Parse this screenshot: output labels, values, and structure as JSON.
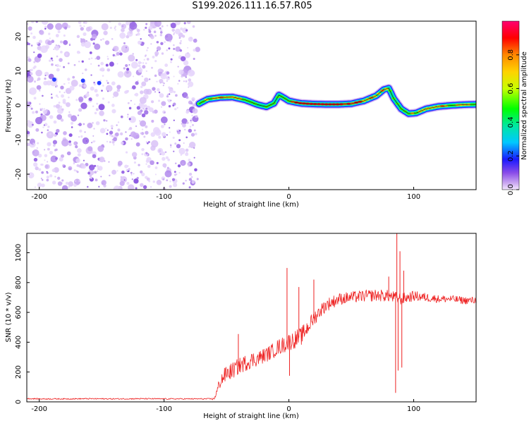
{
  "title": "S199.2026.111.16.57.R05",
  "chart_data": [
    {
      "type": "heatmap",
      "xlabel": "Height of straight line (km)",
      "ylabel": "Frequency (Hz)",
      "xlim": [
        -210,
        150
      ],
      "ylim": [
        -24.5,
        24.5
      ],
      "xticks": [
        -200,
        -100,
        0,
        100
      ],
      "xtick_labels": [
        "-200",
        "-100",
        "0",
        "100"
      ],
      "yticks": [
        -20,
        -10,
        0,
        10,
        20
      ],
      "ytick_labels": [
        "-20",
        "-10",
        "0",
        "10",
        "20"
      ],
      "noise_region": {
        "x_from": -210,
        "x_to": -73
      },
      "ridge": {
        "x": [
          -72,
          -65,
          -55,
          -45,
          -35,
          -25,
          -18,
          -12,
          -8,
          -4,
          0,
          5,
          10,
          20,
          30,
          40,
          50,
          60,
          70,
          76,
          80,
          84,
          90,
          96,
          102,
          110,
          120,
          130,
          140,
          150
        ],
        "freq": [
          0.5,
          1.8,
          2.3,
          2.4,
          1.6,
          0.2,
          -0.4,
          0.6,
          3.0,
          2.2,
          1.3,
          0.9,
          0.6,
          0.4,
          0.3,
          0.3,
          0.5,
          1.3,
          2.8,
          4.6,
          5.0,
          2.0,
          -1.0,
          -2.4,
          -2.2,
          -1.0,
          -0.3,
          0.0,
          0.2,
          0.3
        ],
        "amplitude": [
          0.6,
          0.7,
          0.75,
          0.75,
          0.7,
          0.6,
          0.55,
          0.6,
          0.65,
          0.65,
          0.75,
          0.85,
          0.95,
          0.97,
          0.97,
          0.95,
          0.9,
          0.85,
          0.8,
          0.75,
          0.7,
          0.6,
          0.6,
          0.65,
          0.7,
          0.75,
          0.8,
          0.75,
          0.7,
          0.7
        ]
      },
      "colorbar": {
        "label": "Normalized spectral amplitude",
        "range": [
          0,
          1
        ],
        "ticks": [
          0.0,
          0.2,
          0.4,
          0.6,
          0.8
        ],
        "tick_labels": [
          "0.0",
          "0.2",
          "0.4",
          "0.6",
          "0.8"
        ]
      }
    },
    {
      "type": "line",
      "xlabel": "Height of straight line (km)",
      "ylabel": "SNR (10 * v/v)",
      "xlim": [
        -210,
        150
      ],
      "ylim": [
        0,
        1130
      ],
      "xticks": [
        -200,
        -100,
        0,
        100
      ],
      "xtick_labels": [
        "-200",
        "-100",
        "0",
        "100"
      ],
      "yticks": [
        0,
        200,
        400,
        600,
        800,
        1000
      ],
      "ytick_labels": [
        "0",
        "200",
        "400",
        "600",
        "800",
        "1000"
      ],
      "line_color": "#ee2222",
      "series": [
        {
          "name": "SNR",
          "x": [
            -210,
            -200,
            -180,
            -160,
            -140,
            -120,
            -100,
            -80,
            -65,
            -60,
            -58,
            -55,
            -50,
            -45,
            -40,
            -35,
            -30,
            -25,
            -20,
            -15,
            -10,
            -5,
            0,
            5,
            10,
            15,
            20,
            25,
            30,
            40,
            50,
            60,
            70,
            80,
            85,
            90,
            95,
            100,
            110,
            120,
            130,
            140,
            150
          ],
          "values": [
            22,
            20,
            20,
            21,
            20,
            21,
            20,
            20,
            20,
            20,
            60,
            140,
            190,
            210,
            240,
            260,
            280,
            290,
            310,
            330,
            360,
            380,
            400,
            420,
            440,
            500,
            560,
            610,
            650,
            690,
            700,
            710,
            715,
            710,
            700,
            690,
            700,
            710,
            700,
            690,
            690,
            680,
            680
          ],
          "noise": [
            4,
            4,
            4,
            4,
            4,
            4,
            4,
            4,
            4,
            8,
            25,
            50,
            55,
            55,
            55,
            55,
            55,
            50,
            50,
            50,
            55,
            55,
            60,
            60,
            60,
            55,
            50,
            45,
            45,
            40,
            40,
            40,
            40,
            40,
            40,
            40,
            35,
            35,
            30,
            25,
            25,
            25,
            25
          ]
        }
      ],
      "spikes": [
        {
          "x": -40.5,
          "value": 455
        },
        {
          "x": -1.5,
          "value": 898
        },
        {
          "x": 0.5,
          "value": 175
        },
        {
          "x": 8,
          "value": 770
        },
        {
          "x": 20,
          "value": 820
        },
        {
          "x": 80,
          "value": 840
        },
        {
          "x": 85.5,
          "value": 60
        },
        {
          "x": 86.5,
          "value": 1130
        },
        {
          "x": 87.5,
          "value": 210
        },
        {
          "x": 89,
          "value": 1010
        },
        {
          "x": 90.5,
          "value": 230
        },
        {
          "x": 92,
          "value": 880
        }
      ]
    }
  ]
}
